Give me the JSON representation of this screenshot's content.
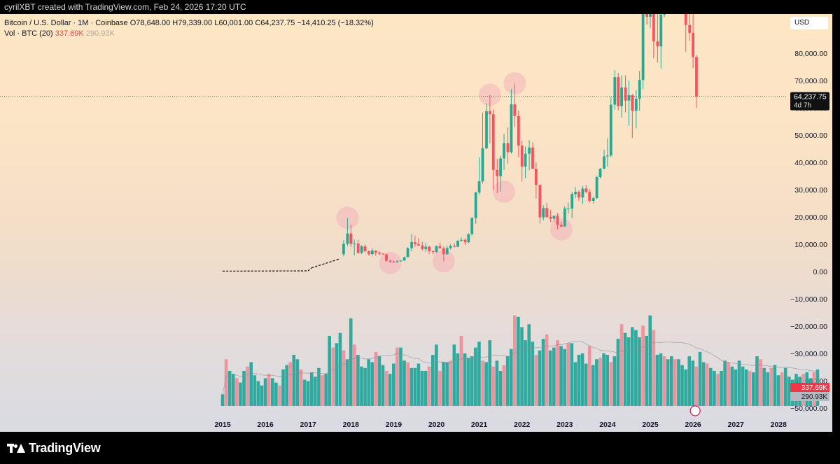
{
  "header": {
    "text": "cyrilXBT created with TradingView.com, Feb 24, 2026 17:20 UTC"
  },
  "legend": {
    "line1": "Bitcoin / U.S. Dollar · 1M · Coinbase  O78,648.00  H79,339.00  L60,001.00  C64,237.75  −14,410.25 (−18.32%)",
    "vol_label": "Vol · BTC (20)",
    "vol_value": "337.69K",
    "vol_ma": "290.93K"
  },
  "currency": "USD",
  "footer": {
    "logo_text": "TradingView"
  },
  "price_tag": {
    "value": "64,237.75",
    "countdown": "4d 7h"
  },
  "vol_tags": {
    "vol": "337.69K",
    "ma": "290.93K"
  },
  "colors": {
    "up": "#22ab94",
    "down": "#f7525f",
    "up_vol": "#26a69a",
    "down_vol": "#ef8f9a",
    "highlight_circle": "#f5a9b8"
  },
  "chart_data": {
    "type": "candlestick",
    "title": "Bitcoin / U.S. Dollar · 1M · Coinbase",
    "x_ticks": [
      "2015",
      "2016",
      "2017",
      "2018",
      "2019",
      "2020",
      "2021",
      "2022",
      "2023",
      "2024",
      "2025",
      "2026",
      "2027",
      "2028"
    ],
    "y_ticks": [
      80000,
      70000,
      60000,
      50000,
      40000,
      30000,
      20000,
      10000,
      0,
      -10000,
      -20000,
      -30000,
      -40000,
      -50000
    ],
    "y_tick_labels": [
      "80,000.00",
      "70,000.00",
      "60,000.00",
      "50,000.00",
      "40,000.00",
      "30,000.00",
      "20,000.00",
      "10,000.00",
      "0.00",
      "−10,000.00",
      "−20,000.00",
      "−30,000.00",
      "−40,000.00",
      "−50,000.00"
    ],
    "last_price": 64237.75,
    "series": [
      {
        "name": "Bitcoin / U.S. Dollar",
        "candles_ohlc": [
          [
            2017.83,
            6400,
            11500,
            5600,
            10200
          ],
          [
            2017.92,
            10200,
            19700,
            9500,
            14000
          ],
          [
            2018.0,
            14000,
            17200,
            9000,
            10200
          ],
          [
            2018.08,
            10200,
            11800,
            6000,
            10300
          ],
          [
            2018.17,
            10300,
            11700,
            6600,
            6900
          ],
          [
            2018.25,
            6900,
            9800,
            6500,
            9250
          ],
          [
            2018.33,
            9250,
            10000,
            7000,
            7500
          ],
          [
            2018.42,
            7500,
            7800,
            5800,
            6400
          ],
          [
            2018.5,
            6400,
            8500,
            6100,
            7750
          ],
          [
            2018.58,
            7750,
            7800,
            5900,
            7000
          ],
          [
            2018.67,
            7000,
            7400,
            6100,
            6600
          ],
          [
            2018.75,
            6600,
            6800,
            6200,
            6350
          ],
          [
            2018.83,
            6350,
            6500,
            3600,
            4000
          ],
          [
            2018.92,
            4000,
            4400,
            3200,
            3700
          ],
          [
            2019.0,
            3700,
            4100,
            3400,
            3450
          ],
          [
            2019.08,
            3450,
            4200,
            3400,
            3800
          ],
          [
            2019.17,
            3800,
            4100,
            3700,
            4100
          ],
          [
            2019.25,
            4100,
            5600,
            4000,
            5300
          ],
          [
            2019.33,
            5300,
            9000,
            5300,
            8600
          ],
          [
            2019.42,
            8600,
            13800,
            7500,
            10800
          ],
          [
            2019.5,
            10800,
            13200,
            9100,
            10100
          ],
          [
            2019.58,
            10100,
            12300,
            9400,
            9600
          ],
          [
            2019.67,
            9600,
            10900,
            7700,
            8300
          ],
          [
            2019.75,
            8300,
            10500,
            7300,
            9150
          ],
          [
            2019.83,
            9150,
            9500,
            6500,
            7550
          ],
          [
            2019.92,
            7550,
            7800,
            6400,
            7200
          ],
          [
            2020.0,
            7200,
            9600,
            6900,
            9350
          ],
          [
            2020.08,
            9350,
            10500,
            8400,
            8550
          ],
          [
            2020.17,
            8550,
            9200,
            3850,
            6400
          ],
          [
            2020.25,
            6400,
            9500,
            6200,
            8650
          ],
          [
            2020.33,
            8650,
            10100,
            8100,
            9450
          ],
          [
            2020.42,
            9450,
            10400,
            8900,
            9150
          ],
          [
            2020.5,
            9150,
            11500,
            9000,
            11350
          ],
          [
            2020.58,
            11350,
            12500,
            11000,
            11650
          ],
          [
            2020.67,
            11650,
            12100,
            9900,
            10800
          ],
          [
            2020.75,
            10800,
            14000,
            10400,
            13800
          ],
          [
            2020.83,
            13800,
            19900,
            13200,
            19700
          ],
          [
            2020.92,
            19700,
            29300,
            17600,
            29000
          ],
          [
            2021.0,
            29000,
            41900,
            28200,
            33100
          ],
          [
            2021.08,
            33100,
            58300,
            32300,
            45200
          ],
          [
            2021.17,
            45200,
            61700,
            44900,
            58800
          ],
          [
            2021.25,
            58800,
            64800,
            47000,
            57700
          ],
          [
            2021.33,
            57700,
            59500,
            30000,
            37300
          ],
          [
            2021.42,
            37300,
            41300,
            28800,
            35000
          ],
          [
            2021.5,
            35000,
            42500,
            29300,
            41500
          ],
          [
            2021.58,
            41500,
            50500,
            37300,
            47100
          ],
          [
            2021.67,
            47100,
            52900,
            39600,
            43800
          ],
          [
            2021.75,
            43800,
            66900,
            43300,
            61300
          ],
          [
            2021.83,
            61300,
            69000,
            53000,
            57000
          ],
          [
            2021.92,
            57000,
            59000,
            42000,
            46200
          ],
          [
            2022.0,
            46200,
            48000,
            33000,
            38500
          ],
          [
            2022.08,
            38500,
            45800,
            34300,
            43200
          ],
          [
            2022.17,
            43200,
            48200,
            37200,
            45500
          ],
          [
            2022.25,
            45500,
            47400,
            37700,
            37700
          ],
          [
            2022.33,
            37700,
            40000,
            26700,
            31800
          ],
          [
            2022.42,
            31800,
            31900,
            17600,
            19900
          ],
          [
            2022.5,
            19900,
            24300,
            18800,
            23300
          ],
          [
            2022.58,
            23300,
            25200,
            19600,
            20050
          ],
          [
            2022.67,
            20050,
            22700,
            18200,
            19400
          ],
          [
            2022.75,
            19400,
            20500,
            18200,
            20500
          ],
          [
            2022.83,
            20500,
            21500,
            15500,
            17150
          ],
          [
            2022.92,
            17150,
            18400,
            16300,
            16550
          ],
          [
            2023.0,
            16550,
            23900,
            16500,
            23150
          ],
          [
            2023.08,
            23150,
            25300,
            21400,
            23150
          ],
          [
            2023.17,
            23150,
            29200,
            19600,
            28450
          ],
          [
            2023.25,
            28450,
            31000,
            26900,
            29250
          ],
          [
            2023.33,
            29250,
            29800,
            25800,
            27200
          ],
          [
            2023.42,
            27200,
            31400,
            24800,
            30450
          ],
          [
            2023.5,
            30450,
            31800,
            28800,
            29200
          ],
          [
            2023.58,
            29200,
            30200,
            25300,
            25950
          ],
          [
            2023.67,
            25950,
            27500,
            24900,
            26950
          ],
          [
            2023.75,
            26950,
            35200,
            26600,
            34650
          ],
          [
            2023.83,
            34650,
            38000,
            34200,
            37700
          ],
          [
            2023.92,
            37700,
            44700,
            37600,
            42250
          ],
          [
            2024.0,
            42250,
            48900,
            38500,
            42550
          ],
          [
            2024.08,
            42550,
            63900,
            41900,
            61200
          ],
          [
            2024.17,
            61200,
            73800,
            59300,
            71300
          ],
          [
            2024.25,
            71300,
            72800,
            59100,
            60650
          ],
          [
            2024.33,
            60650,
            71900,
            56500,
            67500
          ],
          [
            2024.42,
            67500,
            71900,
            58400,
            62700
          ],
          [
            2024.5,
            62700,
            70000,
            53500,
            64650
          ],
          [
            2024.58,
            64650,
            65100,
            49000,
            58950
          ],
          [
            2024.67,
            58950,
            66500,
            52500,
            63350
          ],
          [
            2024.75,
            63350,
            73600,
            58900,
            70250
          ],
          [
            2024.83,
            70250,
            99500,
            66800,
            96400
          ],
          [
            2024.92,
            96400,
            108300,
            90500,
            93400
          ],
          [
            2025.0,
            93400,
            109600,
            89200,
            102400
          ],
          [
            2025.08,
            102400,
            102700,
            78200,
            84350
          ],
          [
            2025.17,
            84350,
            95000,
            76600,
            82550
          ],
          [
            2025.25,
            82550,
            95800,
            74500,
            94200
          ],
          [
            2025.33,
            94200,
            111900,
            93300,
            104600
          ],
          [
            2025.42,
            104600,
            110400,
            98300,
            107100
          ],
          [
            2025.5,
            107100,
            123200,
            105100,
            115700
          ],
          [
            2025.58,
            115700,
            124400,
            107300,
            108200
          ],
          [
            2025.67,
            108200,
            117900,
            107300,
            114000
          ],
          [
            2025.75,
            114000,
            126100,
            103500,
            109600
          ],
          [
            2025.83,
            109600,
            111200,
            80600,
            90400
          ],
          [
            2025.92,
            90400,
            94600,
            84500,
            87500
          ],
          [
            2026.0,
            87500,
            97900,
            74600,
            78648
          ],
          [
            2026.08,
            78648,
            79339,
            60001,
            64237.75
          ]
        ]
      }
    ],
    "volume": {
      "label": "Vol · BTC (20)",
      "last": "337.69K",
      "ma": "290.93K",
      "from_year": 2015.0,
      "step": 0.0833,
      "values": [
        40,
        160,
        120,
        110,
        95,
        80,
        120,
        135,
        150,
        105,
        85,
        70,
        95,
        110,
        95,
        80,
        70,
        125,
        140,
        150,
        175,
        160,
        125,
        90,
        85,
        115,
        100,
        130,
        105,
        110,
        240,
        200,
        215,
        250,
        190,
        160,
        300,
        210,
        175,
        135,
        130,
        160,
        150,
        185,
        170,
        140,
        120,
        110,
        145,
        200,
        200,
        155,
        150,
        130,
        130,
        145,
        120,
        120,
        135,
        175,
        210,
        120,
        150,
        150,
        155,
        210,
        180,
        240,
        180,
        165,
        170,
        200,
        220,
        155,
        150,
        225,
        135,
        155,
        120,
        140,
        170,
        195,
        310,
        305,
        270,
        225,
        280,
        220,
        175,
        190,
        230,
        245,
        190,
        200,
        225,
        205,
        195,
        215,
        215,
        150,
        175,
        180,
        145,
        205,
        140,
        160,
        165,
        180,
        175,
        150,
        170,
        230,
        280,
        250,
        235,
        270,
        260,
        235,
        275,
        240,
        310,
        260,
        175,
        180,
        170,
        160,
        170,
        160,
        160,
        140,
        125,
        170,
        155,
        135,
        185,
        150,
        145,
        130,
        120,
        110,
        120,
        155,
        150,
        135,
        125,
        155,
        135,
        125,
        120,
        115,
        170,
        160,
        130,
        115,
        130,
        140,
        105,
        115,
        130,
        100,
        90,
        110,
        100,
        110,
        115,
        95,
        115,
        125
      ]
    }
  }
}
